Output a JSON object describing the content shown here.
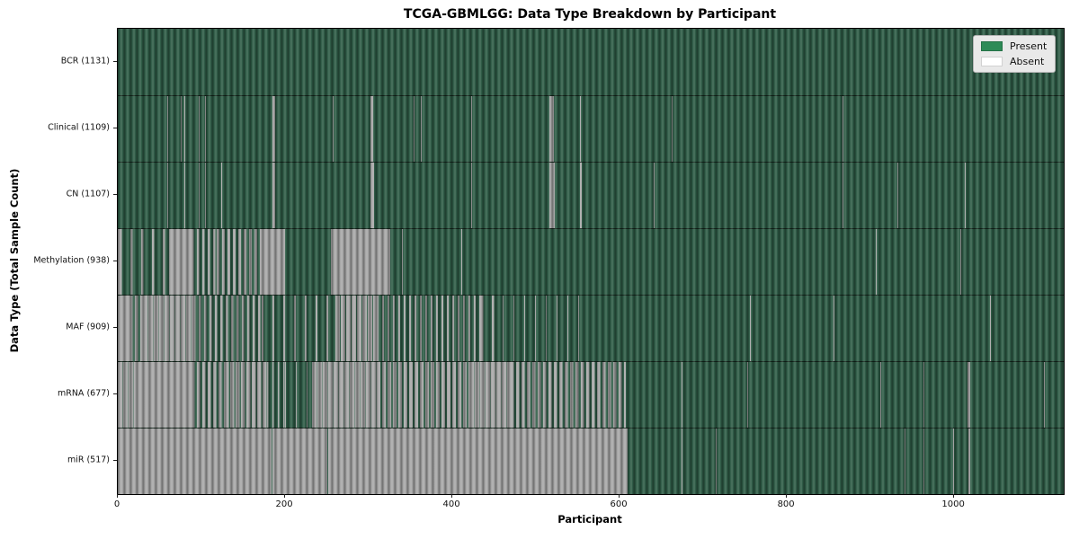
{
  "title": "TCGA-GBMLGG: Data Type Breakdown by Participant",
  "x_axis": {
    "label": "Participant",
    "ticks": [
      0,
      200,
      400,
      600,
      800,
      1000
    ],
    "max": 1131
  },
  "y_axis": {
    "label": "Data Type (Total Sample Count)"
  },
  "legend": {
    "items": [
      {
        "label": "Present",
        "color": "#2e8b57"
      },
      {
        "label": "Absent",
        "color": "#ffffff"
      }
    ]
  },
  "colors": {
    "present_fill": "#2e5c46",
    "absent_fill": "#a8a8a8",
    "plot_border": "#000000",
    "legend_bg": "#e9e9e9"
  },
  "chart_data": {
    "type": "heatmap",
    "x_unit": "participant_index",
    "x_range": [
      0,
      1131
    ],
    "states": [
      "Present",
      "Absent"
    ],
    "segment_format": [
      "start_participant",
      "end_participant",
      "absent_fraction"
    ],
    "rows": [
      {
        "label": "BCR (1131)",
        "data_type": "BCR",
        "total_samples": 1131,
        "absent_segments": []
      },
      {
        "label": "Clinical (1109)",
        "data_type": "Clinical",
        "total_samples": 1109,
        "absent_segments": [
          [
            59,
            60,
            1
          ],
          [
            75,
            76,
            1
          ],
          [
            80,
            81,
            1
          ],
          [
            97,
            98,
            1
          ],
          [
            104,
            105,
            1
          ],
          [
            185,
            188,
            1
          ],
          [
            257,
            258,
            1
          ],
          [
            302,
            305,
            1
          ],
          [
            354,
            355,
            1
          ],
          [
            362,
            363,
            1
          ],
          [
            423,
            424,
            1
          ],
          [
            516,
            521,
            1
          ],
          [
            553,
            554,
            1
          ],
          [
            662,
            663,
            1
          ],
          [
            866,
            867,
            1
          ]
        ]
      },
      {
        "label": "CN (1107)",
        "data_type": "CN",
        "total_samples": 1107,
        "absent_segments": [
          [
            59,
            60,
            1
          ],
          [
            80,
            81,
            1
          ],
          [
            97,
            98,
            1
          ],
          [
            104,
            105,
            1
          ],
          [
            124,
            125,
            1
          ],
          [
            185,
            188,
            1
          ],
          [
            302,
            306,
            1
          ],
          [
            423,
            424,
            1
          ],
          [
            516,
            523,
            1
          ],
          [
            553,
            555,
            1
          ],
          [
            641,
            642,
            1
          ],
          [
            866,
            867,
            1
          ],
          [
            932,
            933,
            1
          ],
          [
            1013,
            1014,
            1
          ]
        ]
      },
      {
        "label": "Methylation (938)",
        "data_type": "Methylation",
        "total_samples": 938,
        "absent_segments": [
          [
            0,
            2,
            1
          ],
          [
            2,
            60,
            0.2
          ],
          [
            61,
            88,
            1
          ],
          [
            88,
            118,
            0.4
          ],
          [
            118,
            172,
            0.5
          ],
          [
            172,
            200,
            1
          ],
          [
            255,
            326,
            1
          ],
          [
            340,
            341,
            1
          ],
          [
            411,
            412,
            1
          ],
          [
            906,
            907,
            1
          ],
          [
            1007,
            1008,
            1
          ]
        ]
      },
      {
        "label": "MAF (909)",
        "data_type": "MAF",
        "total_samples": 909,
        "absent_segments": [
          [
            0,
            14,
            1
          ],
          [
            14,
            30,
            0.6
          ],
          [
            30,
            90,
            0.92
          ],
          [
            90,
            172,
            0.45
          ],
          [
            172,
            260,
            0.18
          ],
          [
            260,
            310,
            0.8
          ],
          [
            310,
            434,
            0.35
          ],
          [
            434,
            460,
            0.2
          ],
          [
            460,
            560,
            0.08
          ],
          [
            756,
            757,
            1
          ],
          [
            856,
            857,
            1
          ],
          [
            1043,
            1044,
            1
          ]
        ]
      },
      {
        "label": "mRNA (677)",
        "data_type": "mRNA",
        "total_samples": 677,
        "absent_segments": [
          [
            0,
            22,
            0.9
          ],
          [
            22,
            88,
            0.97
          ],
          [
            88,
            128,
            0.55
          ],
          [
            128,
            178,
            0.75
          ],
          [
            178,
            200,
            0.25
          ],
          [
            200,
            232,
            0.1
          ],
          [
            232,
            310,
            0.88
          ],
          [
            310,
            420,
            0.7
          ],
          [
            420,
            470,
            0.88
          ],
          [
            470,
            607,
            0.62
          ],
          [
            674,
            675,
            1
          ],
          [
            753,
            754,
            1
          ],
          [
            912,
            913,
            1
          ],
          [
            963,
            964,
            1
          ],
          [
            1016,
            1019,
            1
          ],
          [
            1107,
            1108,
            1
          ]
        ]
      },
      {
        "label": "miR (517)",
        "data_type": "miR",
        "total_samples": 517,
        "absent_segments": [
          [
            0,
            184,
            1
          ],
          [
            185,
            250,
            1
          ],
          [
            252,
            610,
            1
          ],
          [
            674,
            675,
            1
          ],
          [
            715,
            716,
            1
          ],
          [
            941,
            942,
            1
          ],
          [
            963,
            964,
            1
          ],
          [
            999,
            1000,
            1
          ],
          [
            1017,
            1019,
            1
          ]
        ]
      }
    ]
  }
}
